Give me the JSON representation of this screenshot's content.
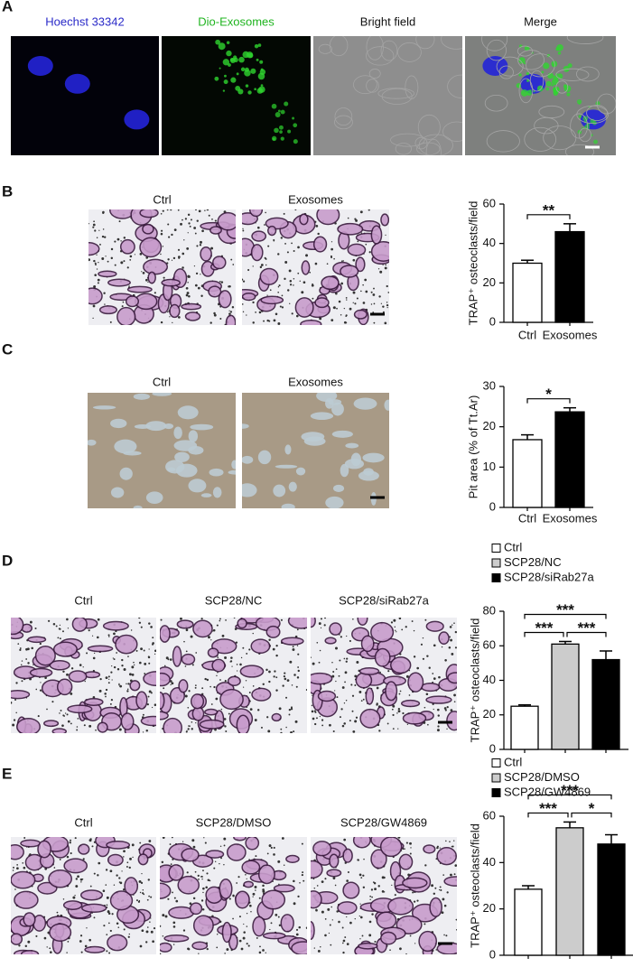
{
  "figure": {
    "panels": [
      {
        "label": "A",
        "captions": [
          "Hoechst 33342",
          "Dio-Exosomes",
          "Bright field",
          "Merge"
        ]
      },
      {
        "label": "B",
        "captions": [
          "Ctrl",
          "Exosomes"
        ]
      },
      {
        "label": "C",
        "captions": [
          "Ctrl",
          "Exosomes"
        ]
      },
      {
        "label": "D",
        "captions": [
          "Ctrl",
          "SCP28/NC",
          "SCP28/siRab27a"
        ]
      },
      {
        "label": "E",
        "captions": [
          "Ctrl",
          "SCP28/DMSO",
          "SCP28/GW4869"
        ]
      }
    ]
  },
  "chart_data": [
    {
      "type": "bar",
      "y_label": "TRAP⁺ osteoclasts/field",
      "categories": [
        "Ctrl",
        "Exosomes"
      ],
      "values": [
        30,
        46
      ],
      "errors": [
        1.5,
        4
      ],
      "colors": [
        "#ffffff",
        "#000000"
      ],
      "ylim": [
        0,
        60
      ],
      "yticks": [
        0,
        20,
        40,
        60
      ],
      "legend": false,
      "significance": [
        {
          "pair": [
            0,
            1
          ],
          "label": "**"
        }
      ]
    },
    {
      "type": "bar",
      "y_label": "Pit area (% of  Tt.Ar)",
      "categories": [
        "Ctrl",
        "Exosomes"
      ],
      "values": [
        16.8,
        23.7
      ],
      "errors": [
        1.2,
        1
      ],
      "colors": [
        "#ffffff",
        "#000000"
      ],
      "ylim": [
        0,
        30
      ],
      "yticks": [
        0,
        10,
        20,
        30
      ],
      "legend": false,
      "significance": [
        {
          "pair": [
            0,
            1
          ],
          "label": "*"
        }
      ]
    },
    {
      "type": "bar",
      "y_label": "TRAP⁺ osteoclasts/field",
      "categories": [
        "Ctrl",
        "SCP28/NC",
        "SCP28/siRab27a"
      ],
      "values": [
        25,
        61,
        52
      ],
      "errors": [
        0.8,
        1.5,
        5
      ],
      "colors": [
        "#ffffff",
        "#cccccc",
        "#000000"
      ],
      "ylim": [
        0,
        80
      ],
      "yticks": [
        0,
        20,
        40,
        60,
        80
      ],
      "legend": true,
      "significance": [
        {
          "pair": [
            0,
            2
          ],
          "label": "***"
        },
        {
          "pair": [
            0,
            1
          ],
          "label": "***"
        },
        {
          "pair": [
            1,
            2
          ],
          "label": "***"
        }
      ]
    },
    {
      "type": "bar",
      "y_label": "TRAP⁺ osteoclasts/field",
      "categories": [
        "Ctrl",
        "SCP28/DMSO",
        "SCP28/GW4869"
      ],
      "values": [
        28.5,
        55,
        48
      ],
      "errors": [
        1.5,
        2.5,
        4
      ],
      "colors": [
        "#ffffff",
        "#cccccc",
        "#000000"
      ],
      "ylim": [
        0,
        60
      ],
      "yticks": [
        0,
        20,
        40,
        60
      ],
      "legend": true,
      "significance": [
        {
          "pair": [
            0,
            2
          ],
          "label": "***"
        },
        {
          "pair": [
            0,
            1
          ],
          "label": "***"
        },
        {
          "pair": [
            1,
            2
          ],
          "label": "*"
        }
      ]
    }
  ]
}
